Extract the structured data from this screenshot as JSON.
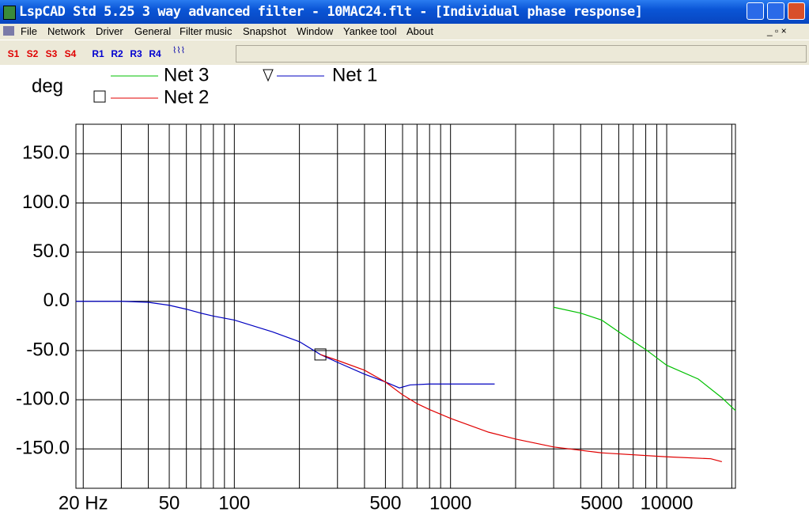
{
  "window": {
    "title": "LspCAD Std 5.25 3 way advanced filter - 10MAC24.flt - [Individual phase response]",
    "menu": [
      "File",
      "Network",
      "Driver",
      "General",
      "Filter music",
      "Snapshot",
      "Window",
      "Yankee tool",
      "About"
    ],
    "toolbar": [
      "S1",
      "S2",
      "S3",
      "S4",
      "R1",
      "R2",
      "R3",
      "R4"
    ]
  },
  "chart_data": {
    "type": "line",
    "ylabel": "deg",
    "xscale": "log",
    "xlim": [
      18.5,
      20800
    ],
    "ylim": [
      -190,
      180
    ],
    "xticks": [
      {
        "value": 20,
        "label": "20 Hz"
      },
      50,
      100,
      500,
      1000,
      5000,
      10000
    ],
    "xminor": [
      30,
      40,
      60,
      70,
      80,
      90,
      200,
      300,
      400,
      600,
      700,
      800,
      900,
      2000,
      3000,
      4000,
      6000,
      7000,
      8000,
      9000,
      20000
    ],
    "yticks": [
      {
        "value": 150,
        "label": "150.0"
      },
      {
        "value": 100,
        "label": "100.0"
      },
      {
        "value": 50,
        "label": "50.0"
      },
      {
        "value": 0,
        "label": "0.0"
      },
      {
        "value": -50,
        "label": "-50.0"
      },
      {
        "value": -100,
        "label": "-100.0"
      },
      {
        "value": -150,
        "label": "-150.0"
      }
    ],
    "grid": true,
    "series": [
      {
        "name": "Net 1",
        "color": "#0000c0",
        "x": [
          18.5,
          20,
          30,
          40,
          50,
          60,
          70,
          80,
          100,
          150,
          200,
          250,
          300,
          400,
          500,
          580,
          650,
          800,
          1000,
          1600
        ],
        "values": [
          0,
          0,
          0,
          -1,
          -4,
          -8,
          -12,
          -15,
          -19,
          -31,
          -41,
          -54,
          -62,
          -74,
          -82,
          -88,
          -85,
          -84,
          -84,
          -84
        ]
      },
      {
        "name": "Net 2",
        "color": "#e00000",
        "x": [
          250,
          300,
          400,
          500,
          600,
          700,
          800,
          1000,
          1500,
          2000,
          3000,
          5000,
          10000,
          16000,
          18000
        ],
        "values": [
          -54,
          -60,
          -70,
          -82,
          -95,
          -104,
          -110,
          -119,
          -133,
          -140,
          -148,
          -154,
          -158,
          -160,
          -163
        ]
      },
      {
        "name": "Net 3",
        "color": "#00c000",
        "x": [
          3000,
          4000,
          5000,
          6000,
          8000,
          10000,
          14000,
          18000,
          20800
        ],
        "values": [
          -6,
          -12,
          -19,
          -31,
          -49,
          -65,
          -79,
          -98,
          -111
        ]
      }
    ]
  }
}
